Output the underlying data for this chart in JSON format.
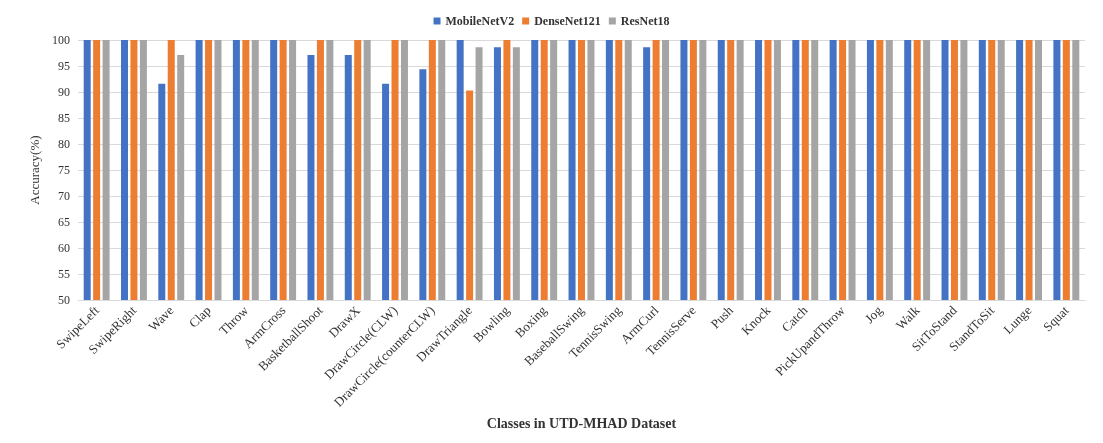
{
  "chart_data": {
    "type": "bar",
    "xlabel": "Classes in UTD-MHAD Dataset",
    "ylabel": "Accuracy(%)",
    "categories": [
      "SwipeLeft",
      "SwipeRight",
      "Wave",
      "Clap",
      "Throw",
      "ArmCross",
      "BasketballShoot",
      "DrawX",
      "DrawCircle(CLW)",
      "DrawCircle(counterCLW)",
      "DrawTriangle",
      "Bowling",
      "Boxing",
      "BaseballSwing",
      "TennisSwing",
      "ArmCurl",
      "TennisServe",
      "Push",
      "Knock",
      "Catch",
      "PickUpandThrow",
      "Jog",
      "Walk",
      "SitToStand",
      "StandToSit",
      "Lunge",
      "Squat"
    ],
    "series": [
      {
        "name": "MobileNetV2",
        "color": "#4472c4",
        "values": [
          100,
          100,
          91.6,
          100,
          100,
          100,
          97.1,
          97.1,
          91.6,
          94.4,
          100,
          98.6,
          100,
          100,
          100,
          98.6,
          100,
          100,
          100,
          100,
          100,
          100,
          100,
          100,
          100,
          100,
          100
        ]
      },
      {
        "name": "DenseNet121",
        "color": "#ed7d31",
        "values": [
          100,
          100,
          100,
          100,
          100,
          100,
          100,
          100,
          100,
          100,
          90.3,
          100,
          100,
          100,
          100,
          100,
          100,
          100,
          100,
          100,
          100,
          100,
          100,
          100,
          100,
          100,
          100
        ]
      },
      {
        "name": "ResNet18",
        "color": "#a5a5a5",
        "values": [
          100,
          100,
          97.1,
          100,
          100,
          100,
          100,
          100,
          100,
          100,
          98.6,
          98.6,
          100,
          100,
          100,
          100,
          100,
          100,
          100,
          100,
          100,
          100,
          100,
          100,
          100,
          100,
          100
        ]
      }
    ],
    "ylim": [
      50,
      100
    ],
    "yticks": [
      50,
      55,
      60,
      65,
      70,
      75,
      80,
      85,
      90,
      95,
      100
    ],
    "grid": "y",
    "legend": "top"
  }
}
